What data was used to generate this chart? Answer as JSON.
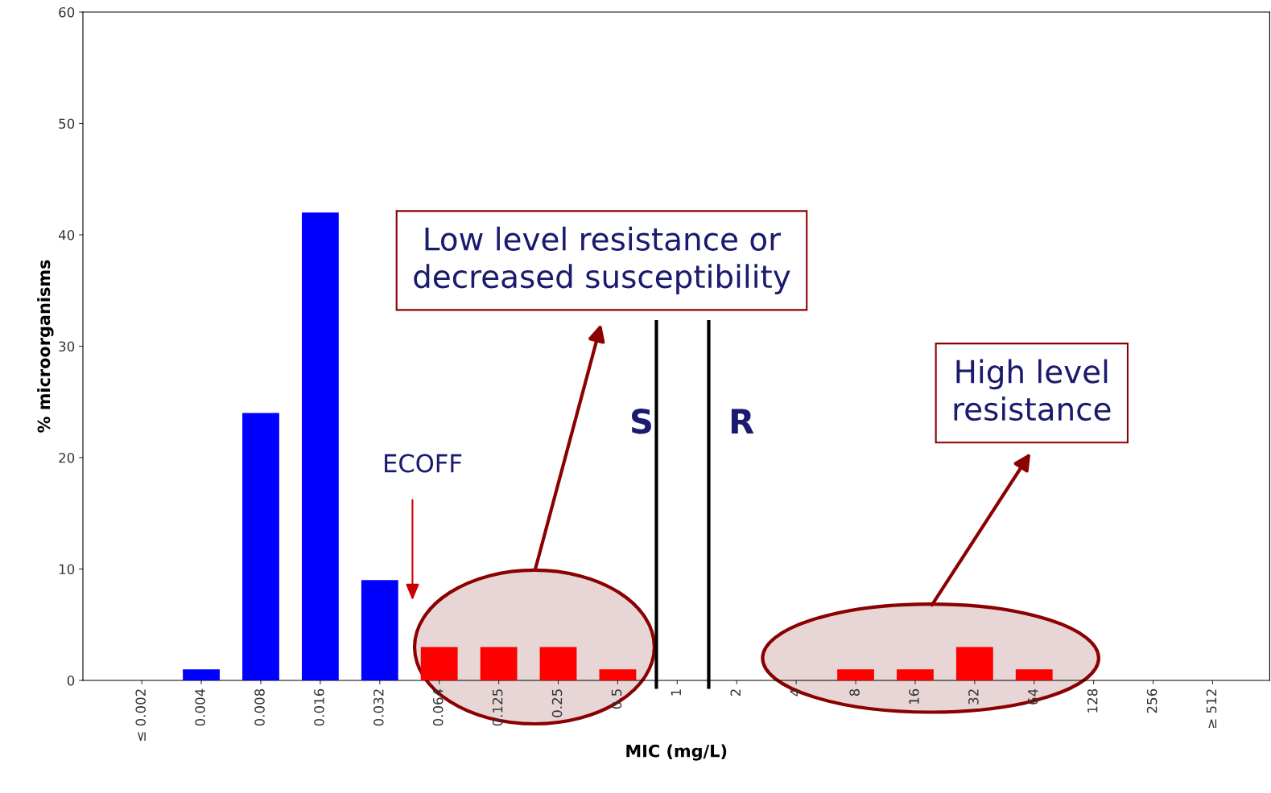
{
  "chart_data": {
    "type": "bar",
    "xlabel": "MIC (mg/L)",
    "ylabel": "% microorganisms",
    "categories": [
      "≤ 0.002",
      "0.004",
      "0.008",
      "0.016",
      "0.032",
      "0.064",
      "0.125",
      "0.25",
      "0.5",
      "1",
      "2",
      "4",
      "8",
      "16",
      "32",
      "64",
      "128",
      "256",
      "≥ 512"
    ],
    "values": [
      0,
      1,
      24,
      42,
      9,
      3,
      3,
      3,
      1,
      0,
      0,
      0,
      1,
      1,
      3,
      1,
      0,
      0,
      0
    ],
    "colors": [
      "#0000ff",
      "#0000ff",
      "#0000ff",
      "#0000ff",
      "#0000ff",
      "#ff0000",
      "#ff0000",
      "#ff0000",
      "#ff0000",
      "#ff0000",
      "#ff0000",
      "#ff0000",
      "#ff0000",
      "#ff0000",
      "#ff0000",
      "#ff0000",
      "#ff0000",
      "#ff0000",
      "#ff0000"
    ],
    "ylim": [
      0,
      60
    ],
    "yticks": [
      0,
      10,
      20,
      30,
      40,
      50,
      60
    ],
    "annotations": [
      "Low level resistance or\ndecreased susceptibility",
      "High level\nresistance",
      "ECOFF",
      "S",
      "R"
    ]
  }
}
